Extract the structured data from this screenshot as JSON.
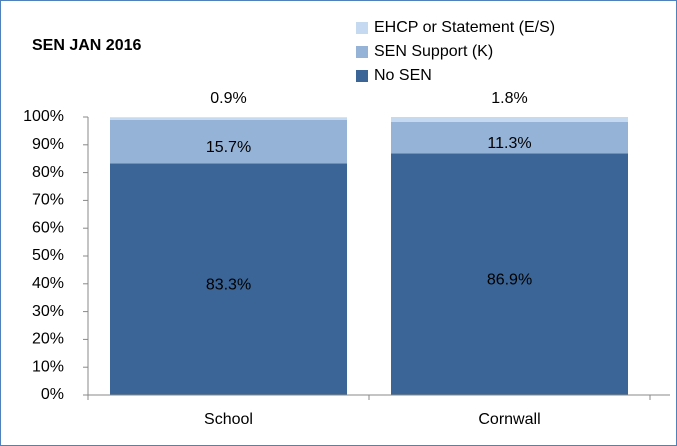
{
  "chart_data": {
    "type": "stacked_bar",
    "title": "SEN JAN 2016",
    "categories": [
      "School",
      "Cornwall"
    ],
    "series": [
      {
        "name": "No SEN",
        "color": "#3a6596",
        "values": [
          83.3,
          86.9
        ],
        "value_labels": [
          "83.3%",
          "86.9%"
        ]
      },
      {
        "name": "SEN Support (K)",
        "color": "#95b3d7",
        "values": [
          15.7,
          11.3
        ],
        "value_labels": [
          "15.7%",
          "11.3%"
        ]
      },
      {
        "name": "EHCP or Statement (E/S)",
        "color": "#c5d9f1",
        "values": [
          0.9,
          1.8
        ],
        "value_labels": [
          "0.9%",
          "1.8%"
        ]
      }
    ],
    "ylim": [
      0,
      100
    ],
    "yticks": [
      {
        "value": 0,
        "label": "0%"
      },
      {
        "value": 10,
        "label": "10%"
      },
      {
        "value": 20,
        "label": "20%"
      },
      {
        "value": 30,
        "label": "30%"
      },
      {
        "value": 40,
        "label": "40%"
      },
      {
        "value": 50,
        "label": "50%"
      },
      {
        "value": 60,
        "label": "60%"
      },
      {
        "value": 70,
        "label": "70%"
      },
      {
        "value": 80,
        "label": "80%"
      },
      {
        "value": 90,
        "label": "90%"
      },
      {
        "value": 100,
        "label": "100%"
      }
    ],
    "legend": "top-right"
  }
}
